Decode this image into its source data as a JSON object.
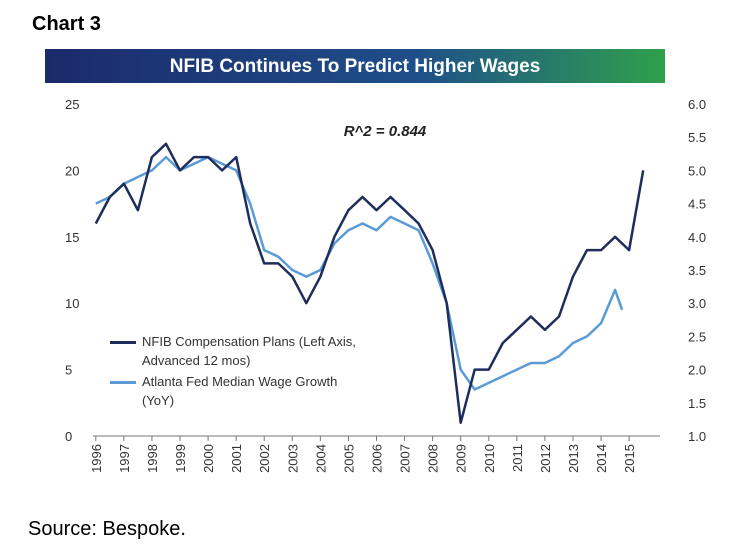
{
  "header": "Chart 3",
  "chart_data": {
    "type": "line",
    "title": "NFIB Continues To Predict Higher Wages",
    "annotation": "R^2 = 0.844",
    "xlim": [
      1995.9,
      2016.1
    ],
    "xticks": [
      1996,
      1997,
      1998,
      1999,
      2000,
      2001,
      2002,
      2003,
      2004,
      2005,
      2006,
      2007,
      2008,
      2009,
      2010,
      2011,
      2012,
      2013,
      2014,
      2015
    ],
    "ylim": [
      0,
      25
    ],
    "yticks": [
      0,
      5,
      10,
      15,
      20,
      25
    ],
    "y2lim": [
      1,
      6
    ],
    "y2ticks": [
      {
        "value": 1,
        "label": "1.0"
      },
      {
        "value": 1.5,
        "label": "1.5"
      },
      {
        "value": 2,
        "label": "2.0"
      },
      {
        "value": 2.5,
        "label": "2.5"
      },
      {
        "value": 3,
        "label": "3.0"
      },
      {
        "value": 3.5,
        "label": "3.5"
      },
      {
        "value": 4,
        "label": "4.0"
      },
      {
        "value": 4.5,
        "label": "4.5"
      },
      {
        "value": 5,
        "label": "5.0"
      },
      {
        "value": 5.5,
        "label": "5.5"
      },
      {
        "value": 6,
        "label": "6.0"
      }
    ],
    "series": [
      {
        "name": "NFIB Compensation Plans (Left Axis, Advanced 12 mos)",
        "color": "#1f2d5c",
        "x": [
          1996,
          1996.5,
          1997,
          1997.5,
          1998,
          1998.5,
          1999,
          1999.5,
          2000,
          2000.5,
          2001,
          2001.5,
          2002,
          2002.5,
          2003,
          2003.5,
          2004,
          2004.5,
          2005,
          2005.5,
          2006,
          2006.5,
          2007,
          2007.5,
          2008,
          2008.5,
          2009,
          2009.5,
          2010,
          2010.5,
          2011,
          2011.5,
          2012,
          2012.5,
          2013,
          2013.5,
          2014,
          2014.5,
          2015,
          2015.5
        ],
        "values": [
          16,
          18,
          19,
          17,
          21,
          22,
          20,
          21,
          21,
          20,
          21,
          16,
          13,
          13,
          12,
          10,
          12,
          15,
          17,
          18,
          17,
          18,
          17,
          16,
          14,
          10,
          1,
          5,
          5,
          7,
          8,
          9,
          8,
          9,
          12,
          14,
          14,
          15,
          14,
          20
        ]
      },
      {
        "name": "Atlanta Fed Median Wage Growth (YoY)",
        "color": "#5b9bd5",
        "axis": "y2",
        "x": [
          1996,
          1996.5,
          1997,
          1997.5,
          1998,
          1998.5,
          1999,
          1999.5,
          2000,
          2000.5,
          2001,
          2001.5,
          2002,
          2002.5,
          2003,
          2003.5,
          2004,
          2004.5,
          2005,
          2005.5,
          2006,
          2006.5,
          2007,
          2007.5,
          2008,
          2008.5,
          2009,
          2009.5,
          2010,
          2010.5,
          2011,
          2011.5,
          2012,
          2012.5,
          2013,
          2013.5,
          2014,
          2014.5,
          2014.75
        ],
        "values": [
          4.5,
          4.6,
          4.8,
          4.9,
          5.0,
          5.2,
          5.0,
          5.1,
          5.2,
          5.1,
          5.0,
          4.5,
          3.8,
          3.7,
          3.5,
          3.4,
          3.5,
          3.9,
          4.1,
          4.2,
          4.1,
          4.3,
          4.2,
          4.1,
          3.6,
          3.0,
          2.0,
          1.7,
          1.8,
          1.9,
          2.0,
          2.1,
          2.1,
          2.2,
          2.4,
          2.5,
          2.7,
          3.2,
          2.9
        ]
      }
    ]
  },
  "source": "Source: Bespoke."
}
